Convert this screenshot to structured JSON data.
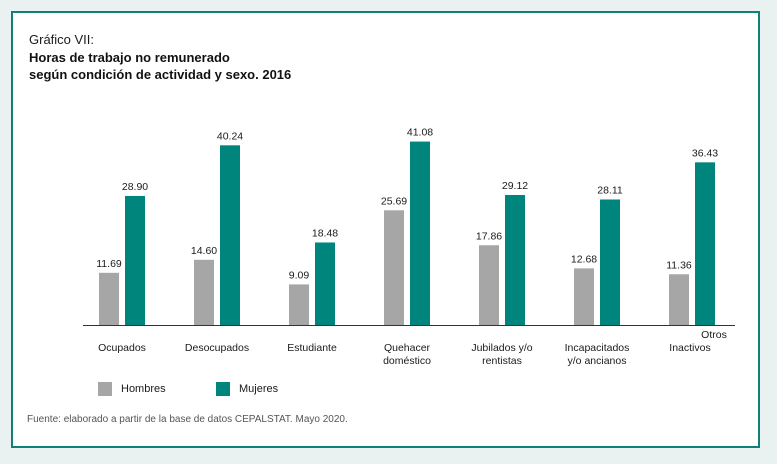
{
  "header": {
    "label": "Gráfico VII:",
    "title_line1": "Horas de trabajo no remunerado",
    "title_line2": "según condición de actividad y sexo. 2016"
  },
  "legend": [
    {
      "name": "Hombres",
      "color": "#a6a6a6"
    },
    {
      "name": "Mujeres",
      "color": "#00857c"
    }
  ],
  "source": "Fuente: elaborado a partir de la base de datos CEPALSTAT. Mayo 2020.",
  "chart_data": {
    "type": "bar",
    "categories": [
      [
        "Ocupados"
      ],
      [
        "Desocupados"
      ],
      [
        "Estudiante"
      ],
      [
        "Quehacer",
        "doméstico"
      ],
      [
        "Jubilados y/o",
        "rentistas"
      ],
      [
        "Incapacitados",
        "y/o ancianos"
      ],
      [
        "Otros",
        "Inactivos"
      ]
    ],
    "series": [
      {
        "name": "Hombres",
        "values": [
          11.69,
          14.6,
          9.09,
          25.69,
          17.86,
          12.68,
          11.36
        ]
      },
      {
        "name": "Mujeres",
        "values": [
          28.9,
          40.24,
          18.48,
          41.08,
          29.12,
          28.11,
          36.43
        ]
      }
    ],
    "value_labels": {
      "Hombres": [
        "11.69",
        "14.60",
        "9.09",
        "25.69",
        "17.86",
        "12.68",
        "11.36"
      ],
      "Mujeres": [
        "28.90",
        "40.24",
        "18.48",
        "41.08",
        "29.12",
        "28.11",
        "36.43"
      ]
    },
    "colors": {
      "Hombres": "#a6a6a6",
      "Mujeres": "#00857c"
    },
    "ylim": [
      0,
      43
    ],
    "xlabel": "",
    "ylabel": "",
    "grid": false,
    "legend_position": "bottom-left"
  }
}
